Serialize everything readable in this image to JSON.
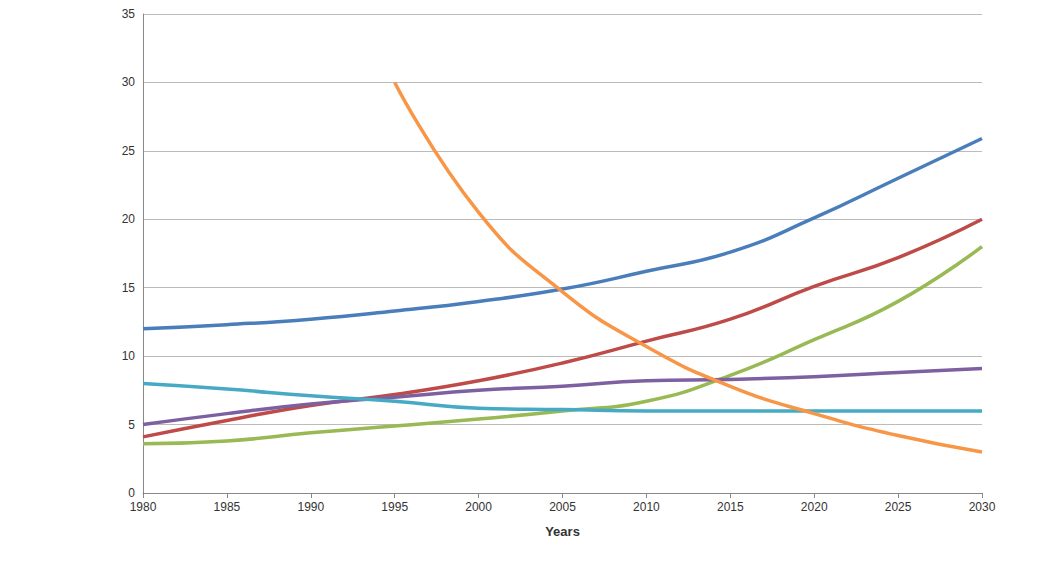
{
  "chart_data": {
    "type": "line",
    "x_label": "Years",
    "x": [
      1980,
      1985,
      1990,
      1995,
      2000,
      2005,
      2010,
      2015,
      2020,
      2025,
      2030
    ],
    "xlim": [
      1980,
      2030
    ],
    "xticks": [
      1980,
      1985,
      1990,
      1995,
      2000,
      2005,
      2010,
      2015,
      2020,
      2025,
      2030
    ],
    "ylim": [
      0,
      35
    ],
    "yticks": [
      0,
      5,
      10,
      15,
      20,
      25,
      30,
      35
    ],
    "grid": true,
    "series": [
      {
        "color": "#4a7ebb",
        "values": [
          12,
          12.3,
          12.7,
          13.3,
          14,
          14.9,
          16.2,
          17.6,
          20.1,
          23,
          25.9
        ]
      },
      {
        "color": "#be4b48",
        "values": [
          4.1,
          5.3,
          6.4,
          7.2,
          8.2,
          9.5,
          11.1,
          12.7,
          15.1,
          17.2,
          20
        ]
      },
      {
        "color": "#98b954",
        "values": [
          3.6,
          3.8,
          4.4,
          4.9,
          5.4,
          6,
          6.7,
          8.6,
          11.2,
          14,
          18
        ]
      },
      {
        "color": "#7d60a0",
        "values": [
          5,
          5.8,
          6.5,
          7,
          7.5,
          7.8,
          8.2,
          8.3,
          8.5,
          8.8,
          9.1
        ]
      },
      {
        "color": "#46aac5",
        "values": [
          8,
          7.6,
          7.1,
          6.7,
          6.2,
          6.1,
          6,
          6,
          6,
          6,
          6
        ]
      },
      {
        "color": "#f79646",
        "values": [
          null,
          null,
          null,
          30,
          20.5,
          14.7,
          10.7,
          7.8,
          5.8,
          4.2,
          3
        ]
      }
    ]
  }
}
